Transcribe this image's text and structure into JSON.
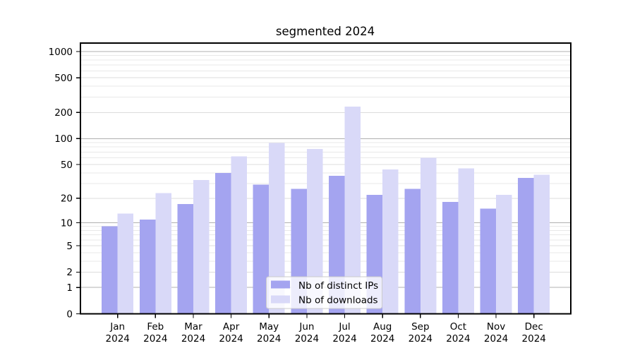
{
  "figure": {
    "background": "#ffffff"
  },
  "chart_data": {
    "type": "bar",
    "title": "segmented 2024",
    "xlabel": "",
    "ylabel": "",
    "yscale": "log1p",
    "ylim": [
      0,
      1250
    ],
    "grid": true,
    "legend_position": "lower center",
    "categories": [
      "Jan",
      "Feb",
      "Mar",
      "Apr",
      "May",
      "Jun",
      "Jul",
      "Aug",
      "Sep",
      "Oct",
      "Nov",
      "Dec"
    ],
    "category_year": "2024",
    "series": [
      {
        "name": "Nb of distinct IPs",
        "color": "#a4a4f0",
        "values": [
          9,
          11,
          17,
          40,
          29,
          26,
          37,
          22,
          26,
          18,
          15,
          35
        ]
      },
      {
        "name": "Nb of downloads",
        "color": "#d9d9f8",
        "values": [
          13,
          23,
          33,
          62,
          89,
          76,
          233,
          44,
          60,
          45,
          22,
          38
        ]
      }
    ],
    "ytick_values": [
      0,
      1,
      2,
      5,
      10,
      20,
      50,
      100,
      200,
      500,
      1000
    ],
    "ytick_labels": [
      "0",
      "1",
      "2",
      "5",
      "10",
      "20",
      "50",
      "100",
      "200",
      "500",
      "1000"
    ],
    "major_grid_values": [
      1,
      10,
      100,
      1000
    ],
    "minor_grid_values": [
      3,
      4,
      6,
      7,
      8,
      9,
      30,
      40,
      60,
      70,
      80,
      90,
      300,
      400,
      600,
      700,
      800,
      900
    ],
    "colors": {
      "grid_major": "#b0b0b0",
      "grid_labeled": "#dcdcdc",
      "grid_minor": "#e8e8e8",
      "axis": "#000000",
      "legend_border": "#cccccc",
      "legend_background": "rgba(255,255,255,0.8)",
      "text": "#000000"
    }
  }
}
